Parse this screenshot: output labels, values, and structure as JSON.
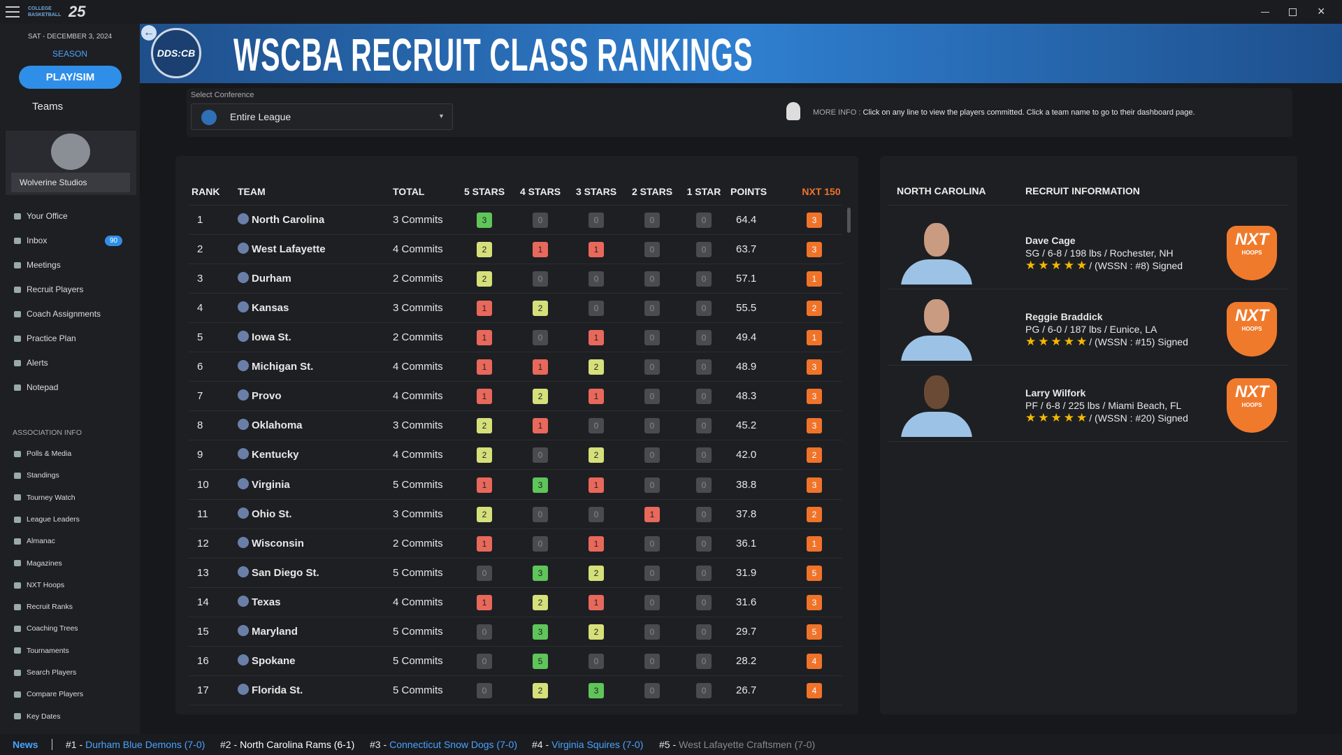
{
  "app": {
    "logo_top": "COLLEGE BASKETBALL",
    "logo_num": "25"
  },
  "sidebar": {
    "date": "SAT - DECEMBER 3, 2024",
    "season": "SEASON",
    "play": "PLAY/SIM",
    "teams": "Teams",
    "studio": "Wolverine Studios",
    "menu": [
      "Your Office",
      "Inbox",
      "Meetings",
      "Recruit Players",
      "Coach Assignments",
      "Practice Plan",
      "Alerts",
      "Notepad"
    ],
    "inbox_count": 90,
    "section": "ASSOCIATION INFO",
    "assoc": [
      "Polls & Media",
      "Standings",
      "Tourney Watch",
      "League Leaders",
      "Almanac",
      "Magazines",
      "NXT Hoops",
      "Recruit Ranks",
      "Coaching Trees",
      "Tournaments",
      "Search Players",
      "Compare Players",
      "Key Dates"
    ]
  },
  "header": {
    "logo": "DDS:CB",
    "title": "WSCBA RECRUIT CLASS RANKINGS"
  },
  "filter": {
    "label": "Select Conference",
    "value": "Entire League",
    "info_label": "MORE INFO :",
    "info_text": "Click on any line to view the players committed. Click a team name to go to their dashboard page."
  },
  "table": {
    "columns": [
      "RANK",
      "TEAM",
      "TOTAL",
      "5 STARS",
      "4 STARS",
      "3 STARS",
      "2 STARS",
      "1 STAR",
      "POINTS",
      "NXT 150"
    ],
    "rows": [
      [
        1,
        "North Carolina",
        "3 Commits",
        3,
        0,
        0,
        0,
        0,
        "64.4",
        3
      ],
      [
        2,
        "West Lafayette",
        "4 Commits",
        2,
        1,
        1,
        0,
        0,
        "63.7",
        3
      ],
      [
        3,
        "Durham",
        "2 Commits",
        2,
        0,
        0,
        0,
        0,
        "57.1",
        1
      ],
      [
        4,
        "Kansas",
        "3 Commits",
        1,
        2,
        0,
        0,
        0,
        "55.5",
        2
      ],
      [
        5,
        "Iowa St.",
        "2 Commits",
        1,
        0,
        1,
        0,
        0,
        "49.4",
        1
      ],
      [
        6,
        "Michigan St.",
        "4 Commits",
        1,
        1,
        2,
        0,
        0,
        "48.9",
        3
      ],
      [
        7,
        "Provo",
        "4 Commits",
        1,
        2,
        1,
        0,
        0,
        "48.3",
        3
      ],
      [
        8,
        "Oklahoma",
        "3 Commits",
        2,
        1,
        0,
        0,
        0,
        "45.2",
        3
      ],
      [
        9,
        "Kentucky",
        "4 Commits",
        2,
        0,
        2,
        0,
        0,
        "42.0",
        2
      ],
      [
        10,
        "Virginia",
        "5 Commits",
        1,
        3,
        1,
        0,
        0,
        "38.8",
        3
      ],
      [
        11,
        "Ohio St.",
        "3 Commits",
        2,
        0,
        0,
        1,
        0,
        "37.8",
        2
      ],
      [
        12,
        "Wisconsin",
        "2 Commits",
        1,
        0,
        1,
        0,
        0,
        "36.1",
        1
      ],
      [
        13,
        "San Diego St.",
        "5 Commits",
        0,
        3,
        2,
        0,
        0,
        "31.9",
        5
      ],
      [
        14,
        "Texas",
        "4 Commits",
        1,
        2,
        1,
        0,
        0,
        "31.6",
        3
      ],
      [
        15,
        "Maryland",
        "5 Commits",
        0,
        3,
        2,
        0,
        0,
        "29.7",
        5
      ],
      [
        16,
        "Spokane",
        "5 Commits",
        0,
        5,
        0,
        0,
        0,
        "28.2",
        4
      ],
      [
        17,
        "Florida St.",
        "5 Commits",
        0,
        2,
        3,
        0,
        0,
        "26.7",
        4
      ]
    ]
  },
  "detail": {
    "team": "NORTH CAROLINA",
    "heading": "RECRUIT INFORMATION",
    "badge": "NXT",
    "badge_sub": "HOOPS",
    "recruits": [
      {
        "name": "Dave Cage",
        "info": "SG / 6-8 / 198 lbs / Rochester, NH",
        "stars": 5,
        "rank": "/ (WSSN : #8) Signed"
      },
      {
        "name": "Reggie Braddick",
        "info": "PG / 6-0 / 187 lbs / Eunice, LA",
        "stars": 5,
        "rank": "/ (WSSN : #15) Signed"
      },
      {
        "name": "Larry Wilfork",
        "info": "PF / 6-8 / 225 lbs / Miami Beach, FL",
        "stars": 5,
        "rank": "/ (WSSN : #20) Signed"
      }
    ]
  },
  "news": {
    "label": "News",
    "items": [
      {
        "rank": "#1 -",
        "team": "Durham Blue Demons (7-0)"
      },
      {
        "rank": "#2 -",
        "team": "North Carolina Rams (6-1)"
      },
      {
        "rank": "#3 -",
        "team": "Connecticut Snow Dogs (7-0)"
      },
      {
        "rank": "#4 -",
        "team": "Virginia Squires (7-0)"
      },
      {
        "rank": "#5 -",
        "team": "West Lafayette Craftsmen (7-0)"
      }
    ]
  }
}
